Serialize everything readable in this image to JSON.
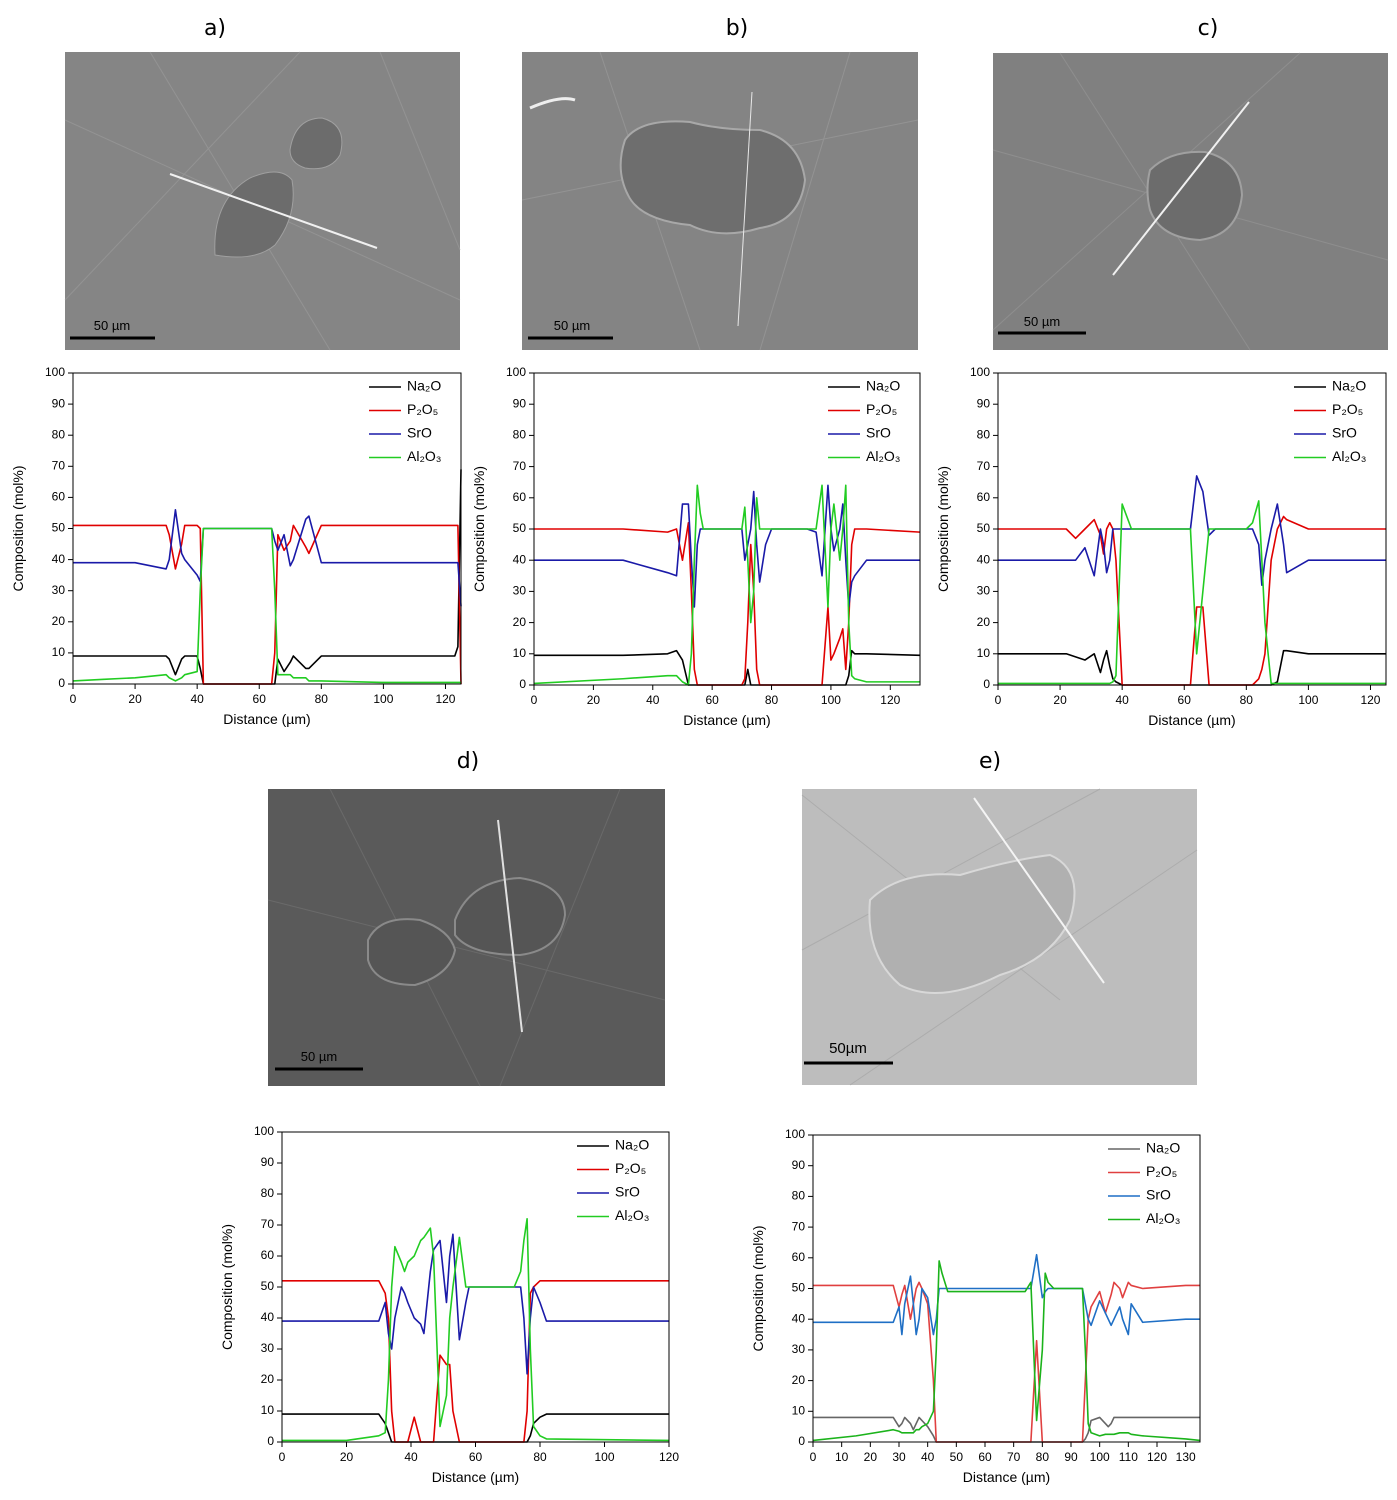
{
  "panel_labels": [
    "a)",
    "b)",
    "c)",
    "d)",
    "e)"
  ],
  "images": [
    {
      "scale_bar": "50 µm"
    },
    {
      "scale_bar": "50 µm"
    },
    {
      "scale_bar": "50 µm"
    },
    {
      "scale_bar": "50 µm"
    },
    {
      "scale_bar": "50µm"
    }
  ],
  "chart_data": [
    {
      "type": "line",
      "x_label": "Distance (µm)",
      "y_label": "Composition (mol%)",
      "xlim": [
        0,
        125
      ],
      "xticks": [
        0,
        20,
        40,
        60,
        80,
        100,
        120
      ],
      "ylim": [
        0,
        100
      ],
      "yticks": [
        0,
        10,
        20,
        30,
        40,
        50,
        60,
        70,
        80,
        90,
        100
      ],
      "legend": "top-right",
      "x": [
        0,
        10,
        20,
        30,
        31,
        33,
        35,
        36,
        40,
        41,
        42,
        50,
        64,
        65,
        66,
        68,
        70,
        71,
        75,
        76,
        80,
        100,
        123,
        124,
        125
      ],
      "series": [
        {
          "name": "Na₂O",
          "color": "#000000",
          "values": [
            9,
            9,
            9,
            9,
            8,
            3,
            8,
            9,
            9,
            5,
            0,
            0,
            0,
            0,
            8,
            4,
            7,
            9,
            5,
            5,
            9,
            9,
            9,
            12,
            69
          ]
        },
        {
          "name": "P₂O₅",
          "color": "#e00000",
          "values": [
            51,
            51,
            51,
            51,
            48,
            37,
            45,
            51,
            51,
            50,
            0,
            0,
            0,
            10,
            48,
            43,
            46,
            51,
            44,
            42,
            51,
            51,
            51,
            51,
            0
          ]
        },
        {
          "name": "SrO",
          "color": "#1a1aa8",
          "values": [
            39,
            39,
            39,
            37,
            40,
            56,
            42,
            40,
            35,
            33,
            50,
            50,
            50,
            46,
            43,
            48,
            38,
            40,
            53,
            54,
            39,
            39,
            39,
            39,
            25
          ]
        },
        {
          "name": "Al₂O₃",
          "color": "#22cc22",
          "values": [
            1,
            1.5,
            2,
            3,
            2,
            1,
            2,
            3,
            4,
            30,
            50,
            50,
            50,
            30,
            3,
            3,
            3,
            2,
            2,
            1,
            1,
            0.5,
            0.5,
            0.5,
            0.5
          ]
        }
      ]
    },
    {
      "type": "line",
      "x_label": "Distance (µm)",
      "y_label": "Composition (mol%)",
      "xlim": [
        0,
        130
      ],
      "xticks": [
        0,
        20,
        40,
        60,
        80,
        100,
        120
      ],
      "ylim": [
        0,
        100
      ],
      "yticks": [
        0,
        10,
        20,
        30,
        40,
        50,
        60,
        70,
        80,
        90,
        100
      ],
      "legend": "top-right",
      "x": [
        0,
        30,
        45,
        48,
        50,
        52,
        53,
        54,
        55,
        56,
        57,
        70,
        71,
        72,
        73,
        74,
        75,
        76,
        78,
        80,
        92,
        95,
        97,
        99,
        100,
        101,
        103,
        104,
        105,
        106,
        107,
        108,
        112,
        130
      ],
      "series": [
        {
          "name": "Na₂O",
          "color": "#000000",
          "values": [
            9.5,
            9.5,
            10,
            11,
            8,
            0,
            0,
            0,
            0,
            0,
            0,
            0,
            0,
            5,
            0,
            0,
            0,
            0,
            0,
            0,
            0,
            0,
            0,
            0,
            0,
            0,
            0,
            0,
            0,
            3,
            11,
            10,
            10,
            9.5
          ]
        },
        {
          "name": "P₂O₅",
          "color": "#e00000",
          "values": [
            50,
            50,
            49,
            50,
            40,
            52,
            30,
            5,
            0,
            0,
            0,
            0,
            2,
            20,
            45,
            30,
            5,
            0,
            0,
            0,
            0,
            0,
            0,
            25,
            8,
            10,
            15,
            18,
            5,
            20,
            45,
            50,
            50,
            49
          ]
        },
        {
          "name": "SrO",
          "color": "#1a1aa8",
          "values": [
            40,
            40,
            36,
            35,
            58,
            58,
            40,
            25,
            45,
            50,
            50,
            50,
            40,
            45,
            50,
            62,
            45,
            33,
            45,
            50,
            50,
            49,
            35,
            64,
            50,
            43,
            50,
            58,
            40,
            25,
            33,
            35,
            40,
            40
          ]
        },
        {
          "name": "Al₂O₃",
          "color": "#22cc22",
          "values": [
            0.5,
            2,
            3,
            3,
            1,
            0,
            10,
            40,
            64,
            55,
            50,
            50,
            57,
            40,
            20,
            30,
            60,
            50,
            50,
            50,
            50,
            50,
            64,
            25,
            50,
            58,
            40,
            50,
            64,
            20,
            3,
            2,
            1,
            1
          ]
        }
      ]
    },
    {
      "type": "line",
      "x_label": "Distance (µm)",
      "y_label": "Composition (mol%)",
      "xlim": [
        0,
        125
      ],
      "xticks": [
        0,
        20,
        40,
        60,
        80,
        100,
        120
      ],
      "ylim": [
        0,
        100
      ],
      "yticks": [
        0,
        10,
        20,
        30,
        40,
        50,
        60,
        70,
        80,
        90,
        100
      ],
      "legend": "top-right",
      "x": [
        0,
        22,
        25,
        28,
        31,
        33,
        34,
        35,
        36,
        37,
        38,
        40,
        43,
        62,
        64,
        66,
        68,
        70,
        80,
        82,
        84,
        85,
        86,
        88,
        90,
        92,
        93,
        100,
        125
      ],
      "series": [
        {
          "name": "Na₂O",
          "color": "#000000",
          "values": [
            10,
            10,
            9,
            8,
            10,
            4,
            8,
            11,
            6,
            2,
            1,
            0,
            0,
            0,
            0,
            0,
            0,
            0,
            0,
            0,
            0,
            0,
            0,
            0,
            1,
            11,
            11,
            10,
            10
          ]
        },
        {
          "name": "P₂O₅",
          "color": "#e00000",
          "values": [
            50,
            50,
            47,
            50,
            53,
            48,
            42,
            50,
            52,
            50,
            40,
            0,
            0,
            0,
            25,
            25,
            0,
            0,
            0,
            0,
            2,
            5,
            10,
            40,
            50,
            54,
            53,
            50,
            50
          ]
        },
        {
          "name": "SrO",
          "color": "#1a1aa8",
          "values": [
            40,
            40,
            40,
            44,
            35,
            50,
            45,
            36,
            40,
            50,
            50,
            50,
            50,
            50,
            67,
            62,
            48,
            50,
            50,
            50,
            45,
            32,
            40,
            50,
            58,
            45,
            36,
            40,
            40
          ]
        },
        {
          "name": "Al₂O₃",
          "color": "#22cc22",
          "values": [
            0.5,
            0.5,
            0.5,
            0.5,
            0.5,
            0.5,
            0.5,
            0.5,
            0.5,
            1,
            3,
            58,
            50,
            50,
            10,
            30,
            50,
            50,
            50,
            52,
            59,
            40,
            20,
            0.5,
            0.5,
            0.5,
            0.5,
            0.5,
            0.5
          ]
        }
      ]
    },
    {
      "type": "line",
      "x_label": "Distance (µm)",
      "y_label": "Composition (mol%)",
      "xlim": [
        0,
        120
      ],
      "xticks": [
        0,
        20,
        40,
        60,
        80,
        100,
        120
      ],
      "ylim": [
        0,
        100
      ],
      "yticks": [
        0,
        10,
        20,
        30,
        40,
        50,
        60,
        70,
        80,
        90,
        100
      ],
      "legend": "top-right",
      "x": [
        0,
        20,
        30,
        32,
        33,
        34,
        35,
        37,
        38,
        39,
        41,
        43,
        44,
        46,
        47,
        49,
        51,
        52,
        53,
        55,
        57,
        58,
        72,
        74,
        75,
        76,
        77,
        78,
        80,
        82,
        120
      ],
      "series": [
        {
          "name": "Na₂O",
          "color": "#000000",
          "values": [
            9,
            9,
            9,
            6,
            3,
            0,
            0,
            0,
            0,
            0,
            0,
            0,
            0,
            0,
            0,
            0,
            0,
            0,
            0,
            0,
            0,
            0,
            0,
            0,
            0,
            0,
            2,
            6,
            8,
            9,
            9
          ]
        },
        {
          "name": "P₂O₅",
          "color": "#e00000",
          "values": [
            52,
            52,
            52,
            48,
            40,
            10,
            0,
            0,
            0,
            0,
            8,
            0,
            0,
            0,
            0,
            28,
            25,
            25,
            10,
            0,
            0,
            0,
            0,
            0,
            0,
            10,
            48,
            50,
            52,
            52,
            52
          ]
        },
        {
          "name": "SrO",
          "color": "#1a1aa8",
          "values": [
            39,
            39,
            39,
            45,
            35,
            30,
            40,
            50,
            48,
            45,
            40,
            38,
            35,
            55,
            62,
            65,
            45,
            60,
            67,
            33,
            45,
            50,
            50,
            50,
            40,
            22,
            40,
            50,
            45,
            39,
            39
          ]
        },
        {
          "name": "Al₂O₃",
          "color": "#22cc22",
          "values": [
            0.5,
            0.5,
            2,
            3,
            20,
            50,
            63,
            58,
            55,
            58,
            60,
            65,
            66,
            69,
            60,
            5,
            15,
            40,
            50,
            66,
            50,
            50,
            50,
            55,
            65,
            72,
            30,
            5,
            2,
            1,
            0.5
          ]
        }
      ]
    },
    {
      "type": "line",
      "x_label": "Distance (µm)",
      "y_label": "Composition (mol%)",
      "xlim": [
        0,
        135
      ],
      "xticks": [
        0,
        10,
        20,
        30,
        40,
        50,
        60,
        70,
        80,
        90,
        100,
        110,
        120,
        130
      ],
      "ylim": [
        0,
        100
      ],
      "yticks": [
        0,
        10,
        20,
        30,
        40,
        50,
        60,
        70,
        80,
        90,
        100
      ],
      "legend": "top-right",
      "x": [
        0,
        15,
        28,
        30,
        31,
        32,
        34,
        35,
        36,
        37,
        38,
        40,
        42,
        43,
        44,
        45,
        47,
        74,
        76,
        78,
        80,
        81,
        82,
        84,
        94,
        95,
        96,
        97,
        100,
        102,
        103,
        104,
        105,
        107,
        108,
        110,
        111,
        115,
        130,
        135
      ],
      "series": [
        {
          "name": "Na₂O",
          "color": "#666666",
          "values": [
            8,
            8,
            8,
            5,
            6,
            8,
            6,
            4,
            6,
            8,
            7,
            5,
            2,
            0,
            0,
            0,
            0,
            0,
            0,
            0,
            0,
            0,
            0,
            0,
            0,
            1,
            3,
            7,
            8,
            6,
            5,
            6,
            8,
            8,
            8,
            8,
            8,
            8,
            8,
            8
          ]
        },
        {
          "name": "P₂O₅",
          "color": "#e04040",
          "values": [
            51,
            51,
            51,
            44,
            48,
            51,
            40,
            45,
            50,
            52,
            50,
            45,
            20,
            0,
            0,
            0,
            0,
            0,
            0,
            33,
            0,
            0,
            0,
            0,
            0,
            20,
            40,
            44,
            49,
            42,
            45,
            48,
            52,
            50,
            47,
            52,
            51,
            50,
            51,
            51
          ]
        },
        {
          "name": "SrO",
          "color": "#1f6fc5",
          "values": [
            39,
            39,
            39,
            44,
            35,
            45,
            54,
            45,
            35,
            40,
            50,
            47,
            35,
            40,
            50,
            50,
            50,
            50,
            50,
            61,
            47,
            49,
            50,
            50,
            50,
            45,
            40,
            38,
            46,
            42,
            40,
            38,
            40,
            44,
            40,
            35,
            45,
            39,
            40,
            40
          ]
        },
        {
          "name": "Al₂O₃",
          "color": "#1bb31b",
          "values": [
            0.5,
            2,
            4,
            3.5,
            3,
            3,
            3,
            3,
            4,
            4,
            5,
            6,
            10,
            30,
            59,
            55,
            49,
            49,
            52,
            7,
            30,
            55,
            52,
            50,
            50,
            30,
            6,
            3,
            2,
            2.5,
            2.5,
            2.5,
            2.5,
            3,
            3,
            3,
            2.5,
            2,
            1,
            0.5
          ]
        }
      ]
    }
  ]
}
